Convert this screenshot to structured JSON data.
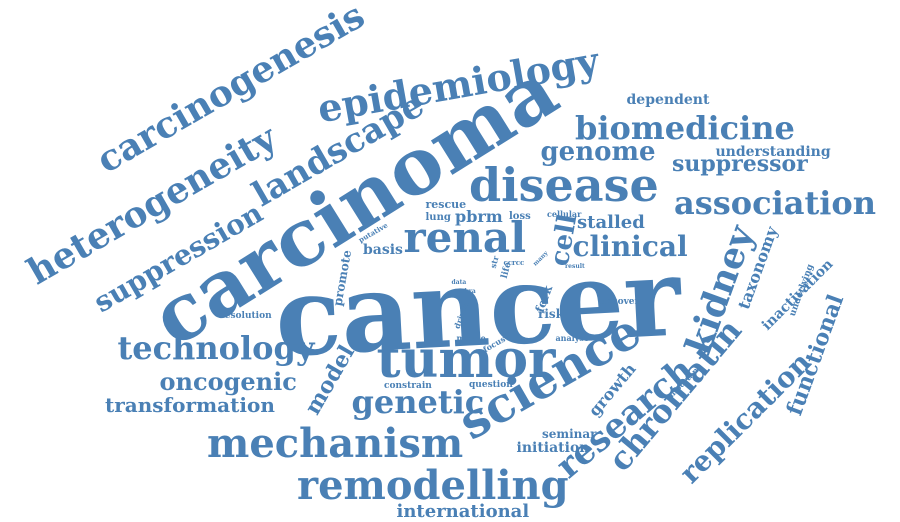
{
  "colors": {
    "text": "#4a80b5",
    "background": "#ffffff"
  },
  "words": [
    "cancer",
    "carcinoma",
    "tumor",
    "disease",
    "renal",
    "science",
    "epidemiology",
    "carcinogenesis",
    "heterogeneity",
    "landscape",
    "biomedicine",
    "genome",
    "suppressor",
    "association",
    "suppression",
    "technology",
    "oncogenic",
    "transformation",
    "mechanism",
    "remodelling",
    "genetic",
    "research",
    "chromatin",
    "kidney",
    "replication",
    "functional",
    "clinical",
    "cell",
    "stalled",
    "dependent",
    "understanding",
    "international",
    "model",
    "growth",
    "initiation",
    "seminar",
    "taxonomy",
    "inactivation",
    "basis",
    "promote",
    "rescue",
    "lung",
    "pbrm",
    "loss",
    "cellular",
    "resolution",
    "putative",
    "fork",
    "risk",
    "uncover",
    "analyse",
    "question",
    "constrain",
    "focus",
    "mouse",
    "driven",
    "data",
    "life",
    "str",
    "ccrcc",
    "kra",
    "many",
    "result",
    "important",
    "underlying"
  ]
}
